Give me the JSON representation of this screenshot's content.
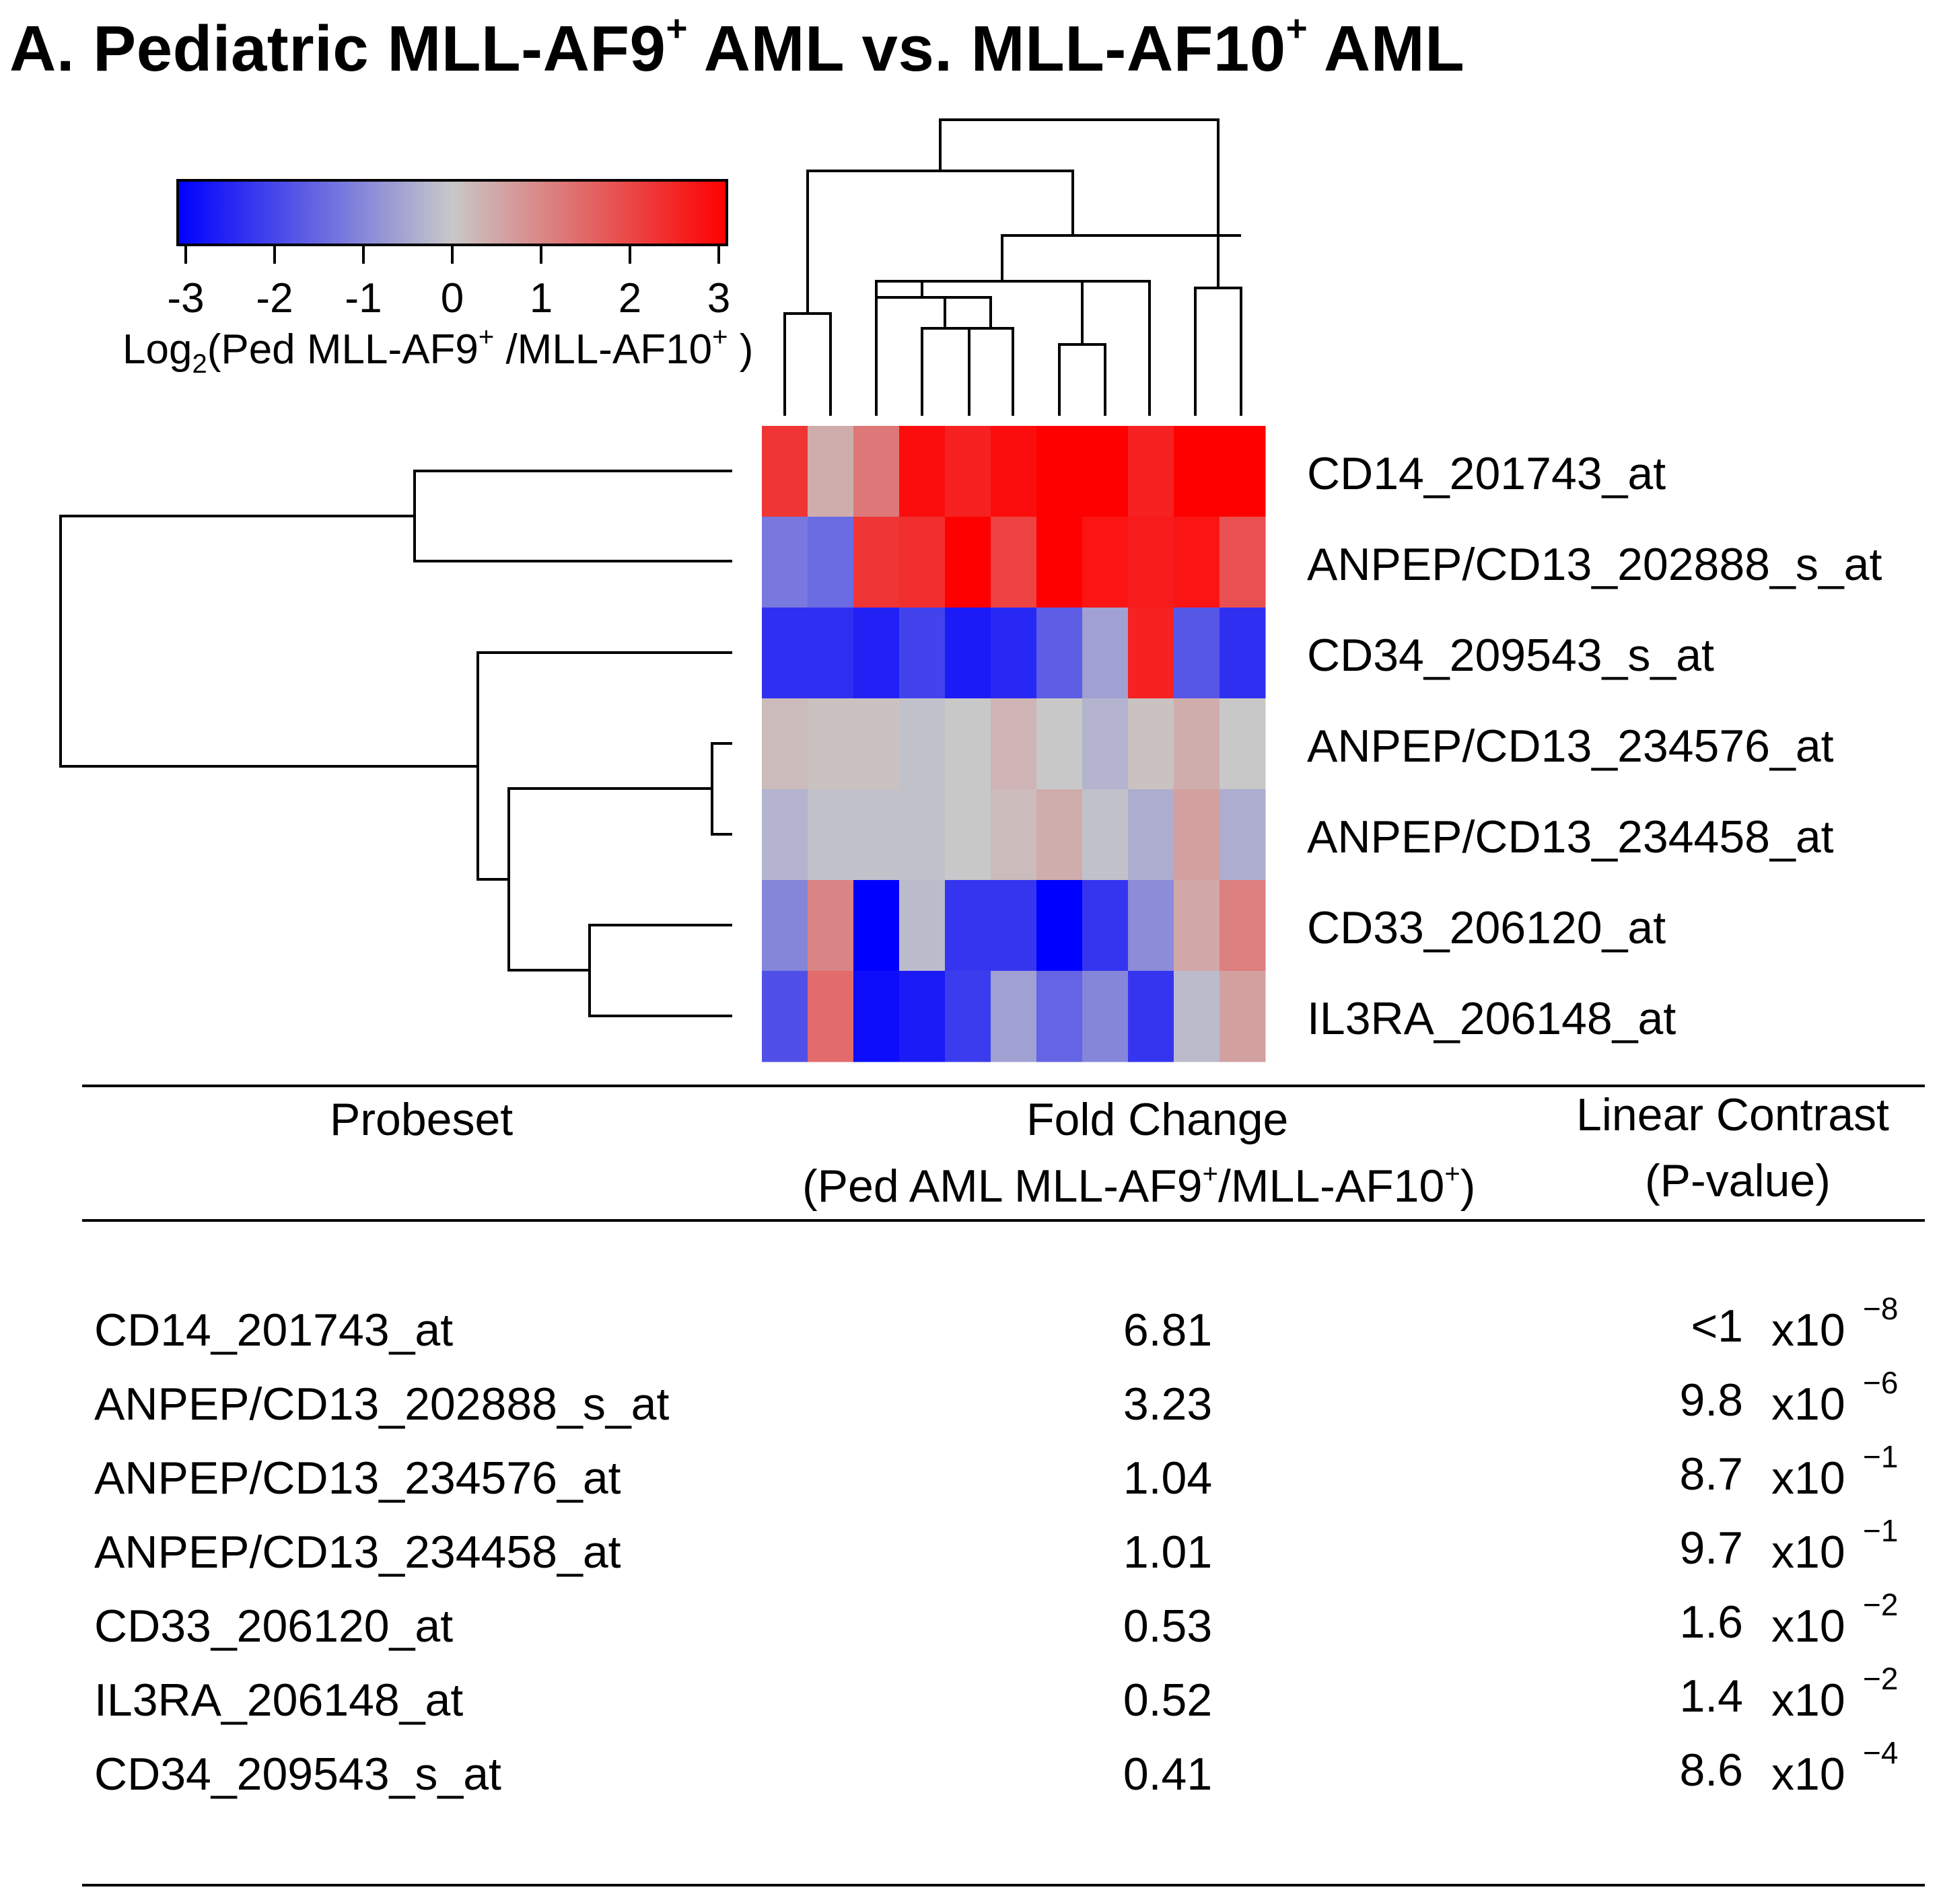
{
  "title": {
    "prefix": "A. Pediatric MLL-AF9",
    "sup1": "+",
    "middle": " AML vs. MLL-AF10",
    "sup2": "+",
    "suffix": " AML"
  },
  "colorbar": {
    "ticks": [
      "-3",
      "-2",
      "-1",
      "0",
      "1",
      "2",
      "3"
    ],
    "range": [
      -3,
      3
    ],
    "low_color": "#0000ff",
    "mid_color": "#c8c8c8",
    "high_color": "#ff0000",
    "label": {
      "pre": "Log",
      "sub": "2",
      "mid": "(Ped MLL-AF9",
      "sup1": "+",
      "mid2": " /MLL-AF10",
      "sup2": "+",
      "post": " )"
    }
  },
  "chart_data": {
    "type": "heatmap",
    "title": "Log2(Ped MLL-AF9+/MLL-AF10+)",
    "rows": [
      "CD14_201743_at",
      "ANPEP/CD13_202888_s_at",
      "CD34_209543_s_at",
      "ANPEP/CD13_234576_at",
      "ANPEP/CD13_234458_at",
      "CD33_206120_at",
      "IL3RA_206148_at"
    ],
    "n_columns": 11,
    "values": [
      [
        2.2,
        0.4,
        1.2,
        2.8,
        2.5,
        2.8,
        3.0,
        3.0,
        2.5,
        3.0,
        3.0
      ],
      [
        -1.2,
        -1.4,
        2.2,
        2.3,
        3.0,
        2.0,
        3.0,
        2.7,
        2.6,
        2.7,
        1.8
      ],
      [
        -2.3,
        -2.3,
        -2.5,
        -2.0,
        -2.6,
        -2.4,
        -1.6,
        -0.6,
        2.5,
        -1.7,
        -2.3
      ],
      [
        0.2,
        0.1,
        0.1,
        -0.1,
        0.0,
        0.3,
        0.0,
        -0.3,
        0.1,
        0.4,
        0.0
      ],
      [
        -0.3,
        -0.1,
        -0.1,
        -0.1,
        0.0,
        0.2,
        0.4,
        -0.1,
        -0.4,
        0.6,
        -0.4
      ],
      [
        -1.0,
        1.0,
        -3.0,
        -0.2,
        -2.2,
        -2.2,
        -3.0,
        -2.2,
        -0.9,
        0.5,
        1.1
      ],
      [
        -1.8,
        1.4,
        -2.8,
        -2.6,
        -2.1,
        -0.6,
        -1.5,
        -1.0,
        -2.2,
        -0.2,
        0.6
      ]
    ]
  },
  "row_labels": [
    "CD14_201743_at",
    "ANPEP/CD13_202888_s_at",
    "CD34_209543_s_at",
    "ANPEP/CD13_234576_at",
    "ANPEP/CD13_234458_at",
    "CD33_206120_at",
    "IL3RA_206148_at"
  ],
  "table": {
    "headers": {
      "probeset": "Probeset",
      "fold_change": "Fold Change",
      "fold_change_sub": {
        "pre": "(Ped AML MLL-AF9",
        "sup1": "+",
        "mid": "/MLL-AF10",
        "sup2": "+",
        "post": ")"
      },
      "contrast": "Linear Contrast",
      "contrast_sub": "(P-value)"
    },
    "rows": [
      {
        "probeset": "CD14_201743_at",
        "fold": "6.81",
        "p_mantissa": "<1",
        "p_base": "x10",
        "p_exp": "−8"
      },
      {
        "probeset": "ANPEP/CD13_202888_s_at",
        "fold": "3.23",
        "p_mantissa": "9.8",
        "p_base": "x10",
        "p_exp": "−6"
      },
      {
        "probeset": "ANPEP/CD13_234576_at",
        "fold": "1.04",
        "p_mantissa": "8.7",
        "p_base": "x10",
        "p_exp": "−1"
      },
      {
        "probeset": "ANPEP/CD13_234458_at",
        "fold": "1.01",
        "p_mantissa": "9.7",
        "p_base": "x10",
        "p_exp": "−1"
      },
      {
        "probeset": "CD33_206120_at",
        "fold": "0.53",
        "p_mantissa": "1.6",
        "p_base": "x10",
        "p_exp": "−2"
      },
      {
        "probeset": "IL3RA_206148_at",
        "fold": "0.52",
        "p_mantissa": "1.4",
        "p_base": "x10",
        "p_exp": "−2"
      },
      {
        "probeset": "CD34_209543_s_at",
        "fold": "0.41",
        "p_mantissa": "8.6",
        "p_base": "x10",
        "p_exp": "−4"
      }
    ]
  }
}
